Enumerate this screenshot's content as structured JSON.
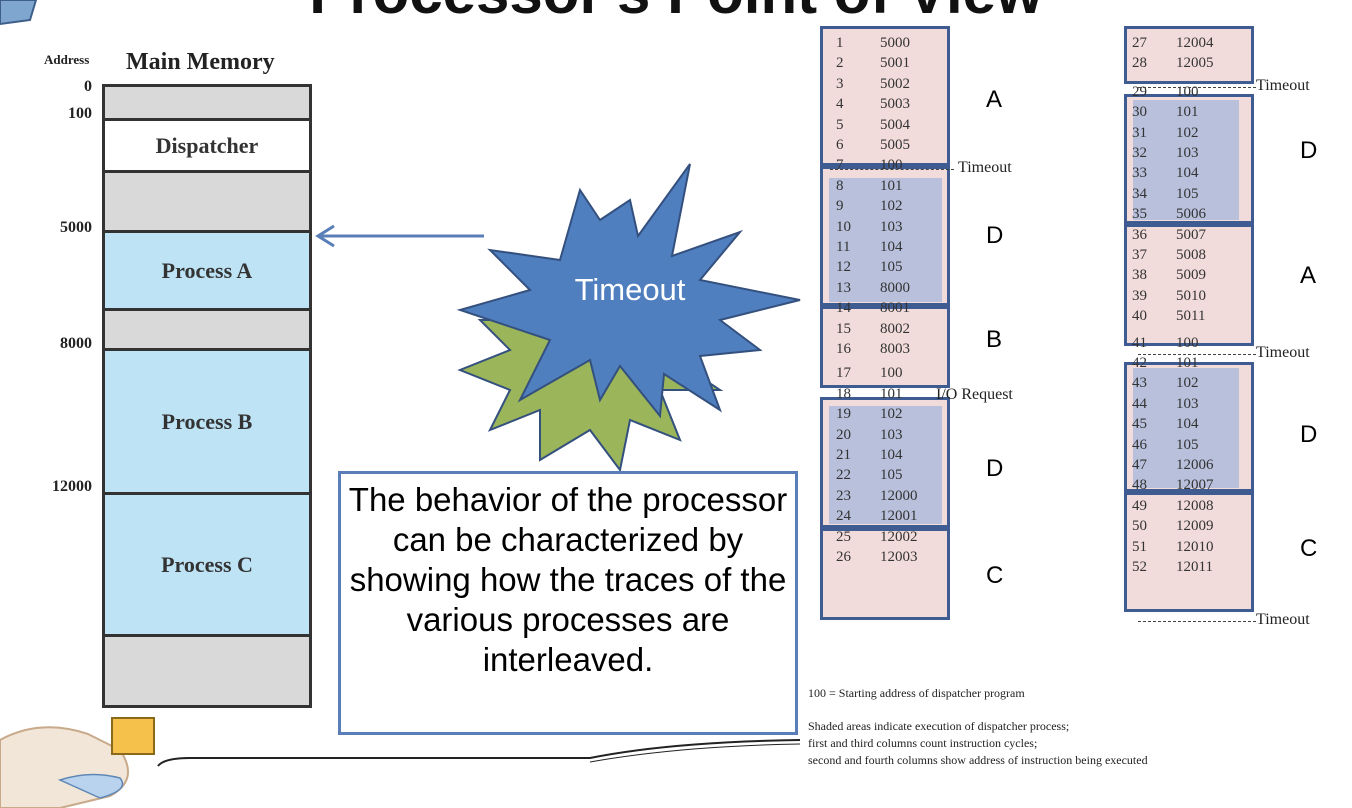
{
  "title": "Processor's Point of View",
  "memory": {
    "address_header": "Address",
    "title": "Main Memory",
    "addresses": [
      "0",
      "100",
      "5000",
      "8000",
      "12000"
    ],
    "segments": [
      "Dispatcher",
      "Process A",
      "Process B",
      "Process C"
    ]
  },
  "starburst": {
    "label": "Timeout"
  },
  "callout": {
    "text": "The behavior of the processor can be characterized by showing how the traces of the various processes are interleaved."
  },
  "trace": {
    "column1": [
      [
        "1",
        "5000"
      ],
      [
        "2",
        "5001"
      ],
      [
        "3",
        "5002"
      ],
      [
        "4",
        "5003"
      ],
      [
        "5",
        "5004"
      ],
      [
        "6",
        "5005"
      ],
      [
        "7",
        "100"
      ],
      [
        "8",
        "101"
      ],
      [
        "9",
        "102"
      ],
      [
        "10",
        "103"
      ],
      [
        "11",
        "104"
      ],
      [
        "12",
        "105"
      ],
      [
        "13",
        "8000"
      ],
      [
        "14",
        "8001"
      ],
      [
        "15",
        "8002"
      ],
      [
        "16",
        "8003"
      ],
      [
        "17",
        "100"
      ],
      [
        "18",
        "101"
      ],
      [
        "19",
        "102"
      ],
      [
        "20",
        "103"
      ],
      [
        "21",
        "104"
      ],
      [
        "22",
        "105"
      ],
      [
        "23",
        "12000"
      ],
      [
        "24",
        "12001"
      ],
      [
        "25",
        "12002"
      ],
      [
        "26",
        "12003"
      ]
    ],
    "column2": [
      [
        "27",
        "12004"
      ],
      [
        "28",
        "12005"
      ],
      [
        "29",
        "100"
      ],
      [
        "30",
        "101"
      ],
      [
        "31",
        "102"
      ],
      [
        "32",
        "103"
      ],
      [
        "33",
        "104"
      ],
      [
        "34",
        "105"
      ],
      [
        "35",
        "5006"
      ],
      [
        "36",
        "5007"
      ],
      [
        "37",
        "5008"
      ],
      [
        "38",
        "5009"
      ],
      [
        "39",
        "5010"
      ],
      [
        "40",
        "5011"
      ],
      [
        "41",
        "100"
      ],
      [
        "42",
        "101"
      ],
      [
        "43",
        "102"
      ],
      [
        "44",
        "103"
      ],
      [
        "45",
        "104"
      ],
      [
        "46",
        "105"
      ],
      [
        "47",
        "12006"
      ],
      [
        "48",
        "12007"
      ],
      [
        "49",
        "12008"
      ],
      [
        "50",
        "12009"
      ],
      [
        "51",
        "12010"
      ],
      [
        "52",
        "12011"
      ]
    ],
    "labels1": [
      "A",
      "D",
      "B",
      "D",
      "C"
    ],
    "labels2": [
      "D",
      "A",
      "D",
      "C"
    ],
    "events1": [
      "Timeout",
      "I/O Request"
    ],
    "events2": [
      "Timeout",
      "Timeout",
      "Timeout"
    ]
  },
  "notes": [
    "100 = Starting address of dispatcher program",
    "Shaded areas indicate execution of dispatcher process;",
    "first and third columns count instruction cycles;",
    "second and fourth columns show address of instruction being executed"
  ],
  "colors": {
    "process_fill": "#bde3f5",
    "gray_fill": "#d9d9d9",
    "trace_pink": "#f2dcdb",
    "trace_shade": "#b8c0dc",
    "box_border": "#3e5c92",
    "starburst_front": "#4f7fbf",
    "starburst_back": "#9bb55a"
  }
}
